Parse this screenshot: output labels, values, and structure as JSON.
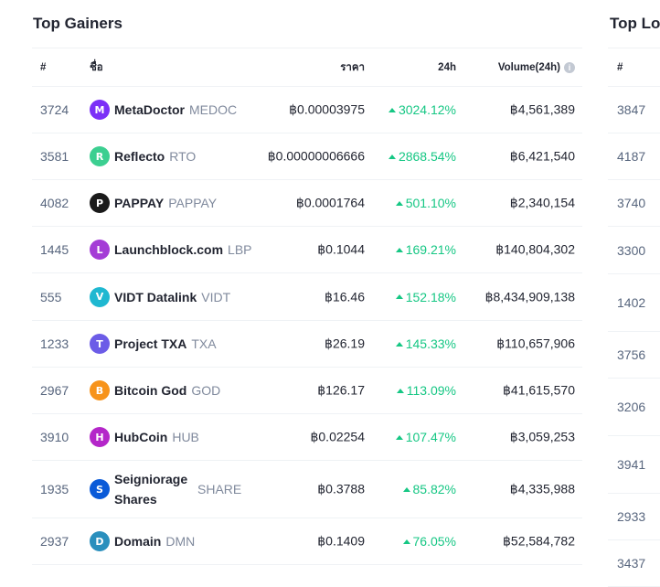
{
  "gainers": {
    "title": "Top Gainers",
    "headers": {
      "rank": "#",
      "name": "ชื่อ",
      "price": "ราคา",
      "change": "24h",
      "volume": "Volume(24h)"
    },
    "rows": [
      {
        "rank": "3724",
        "name": "MetaDoctor",
        "symbol": "MEDOC",
        "price": "฿0.00003975",
        "change": "3024.12%",
        "volume": "฿4,561,389",
        "icon": "metadoctor-icon",
        "color": "#7b2ff7"
      },
      {
        "rank": "3581",
        "name": "Reflecto",
        "symbol": "RTO",
        "price": "฿0.00000006666",
        "change": "2868.54%",
        "volume": "฿6,421,540",
        "icon": "reflecto-icon",
        "color": "#3ccf91"
      },
      {
        "rank": "4082",
        "name": "PAPPAY",
        "symbol": "PAPPAY",
        "price": "฿0.0001764",
        "change": "501.10%",
        "volume": "฿2,340,154",
        "icon": "pappay-icon",
        "color": "#1a1a1a"
      },
      {
        "rank": "1445",
        "name": "Launchblock.com",
        "symbol": "LBP",
        "price": "฿0.1044",
        "change": "169.21%",
        "volume": "฿140,804,302",
        "icon": "launchblock-icon",
        "color": "#a43cd6"
      },
      {
        "rank": "555",
        "name": "VIDT Datalink",
        "symbol": "VIDT",
        "price": "฿16.46",
        "change": "152.18%",
        "volume": "฿8,434,909,138",
        "icon": "vidt-icon",
        "color": "#1fb8d1"
      },
      {
        "rank": "1233",
        "name": "Project TXA",
        "symbol": "TXA",
        "price": "฿26.19",
        "change": "145.33%",
        "volume": "฿110,657,906",
        "icon": "txa-icon",
        "color": "#6c5ce7"
      },
      {
        "rank": "2967",
        "name": "Bitcoin God",
        "symbol": "GOD",
        "price": "฿126.17",
        "change": "113.09%",
        "volume": "฿41,615,570",
        "icon": "bitcoin-god-icon",
        "color": "#f7931a"
      },
      {
        "rank": "3910",
        "name": "HubCoin",
        "symbol": "HUB",
        "price": "฿0.02254",
        "change": "107.47%",
        "volume": "฿3,059,253",
        "icon": "hubcoin-icon",
        "color": "#b426c9"
      },
      {
        "rank": "1935",
        "name": "Seigniorage Shares",
        "symbol": "SHARE",
        "price": "฿0.3788",
        "change": "85.82%",
        "volume": "฿4,335,988",
        "icon": "seigniorage-icon",
        "color": "#0a5ad8"
      },
      {
        "rank": "2937",
        "name": "Domain",
        "symbol": "DMN",
        "price": "฿0.1409",
        "change": "76.05%",
        "volume": "฿52,584,782",
        "icon": "domain-icon",
        "color": "#2a8fbd"
      }
    ]
  },
  "losers": {
    "title": "Top Losers",
    "header_rank": "#",
    "ranks": [
      "3847",
      "4187",
      "3740",
      "3300",
      "1402",
      "3756",
      "3206",
      "3941",
      "2933",
      "3437"
    ]
  },
  "colors": {
    "positive": "#16c784",
    "text": "#222531",
    "muted": "#808a9d",
    "border": "#eff2f5"
  }
}
